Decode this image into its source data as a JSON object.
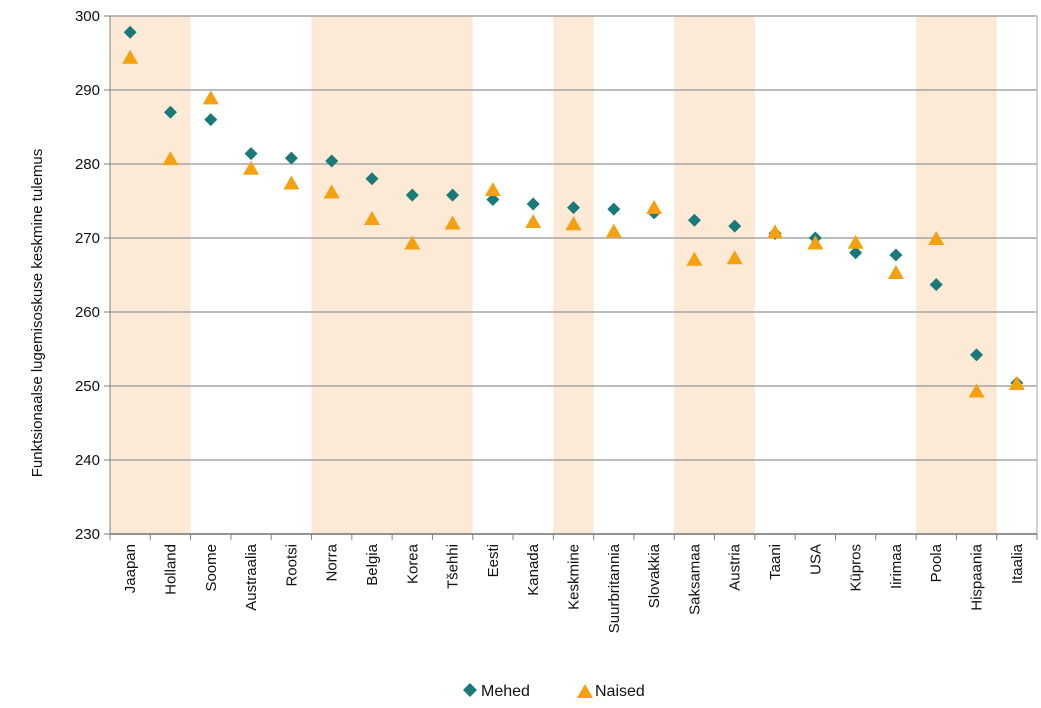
{
  "chart_data": {
    "type": "scatter",
    "title": "",
    "xlabel": "",
    "ylabel": "Funktsionaalse lugemisoskuse keskmine tulemus",
    "ylim": [
      230,
      300
    ],
    "yticks": [
      230,
      240,
      250,
      260,
      270,
      280,
      290,
      300
    ],
    "grid": true,
    "legend_position": "bottom",
    "categories": [
      "Jaapan",
      "Holland",
      "Soome",
      "Austraalia",
      "Rootsi",
      "Norra",
      "Belgia",
      "Korea",
      "Tšehhi",
      "Eesti",
      "Kanada",
      "Keskmine",
      "Suurbritannia",
      "Slovakkia",
      "Saksamaa",
      "Austria",
      "Taani",
      "USA",
      "Küpros",
      "Iirimaa",
      "Poola",
      "Hispaania",
      "Itaalia"
    ],
    "shaded_bands": [
      {
        "from": "Jaapan",
        "to": "Holland"
      },
      {
        "from": "Norra",
        "to": "Tšehhi"
      },
      {
        "from": "Keskmine",
        "to": "Keskmine"
      },
      {
        "from": "Saksamaa",
        "to": "Austria"
      },
      {
        "from": "Poola",
        "to": "Hispaania"
      }
    ],
    "series": [
      {
        "name": "Mehed",
        "marker": "diamond",
        "color": "#1a7a7a",
        "values": [
          297.8,
          287.0,
          286.0,
          281.4,
          280.8,
          280.4,
          278.0,
          275.8,
          275.8,
          275.2,
          274.6,
          274.1,
          273.9,
          273.4,
          272.4,
          271.6,
          270.6,
          270.0,
          268.0,
          267.7,
          263.7,
          254.2,
          250.4
        ]
      },
      {
        "name": "Naised",
        "marker": "triangle",
        "color": "#f5a00f",
        "values": [
          294.5,
          280.8,
          289.0,
          279.5,
          277.5,
          276.3,
          272.7,
          269.4,
          272.1,
          276.6,
          272.3,
          272.0,
          271.0,
          274.2,
          267.2,
          267.4,
          270.9,
          269.4,
          269.5,
          265.4,
          270.0,
          249.4,
          250.4
        ]
      }
    ]
  },
  "colors": {
    "band": "#fce9d6",
    "grid": "#a6a6a6",
    "axis": "#7f7f7f"
  }
}
